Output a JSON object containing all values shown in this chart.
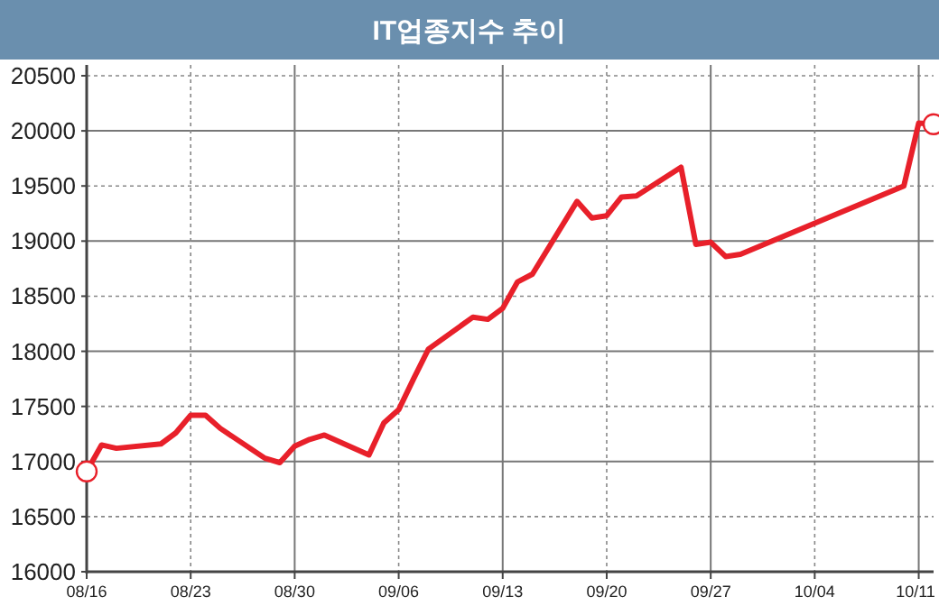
{
  "chart_data": {
    "type": "line",
    "title": "IT업종지수  추이",
    "x": [
      "--08-16",
      "--08-17",
      "--08-18",
      "--08-21",
      "--08-22",
      "--08-23",
      "--08-24",
      "--08-25",
      "--08-28",
      "--08-29",
      "--08-30",
      "--08-31",
      "--09-01",
      "--09-04",
      "--09-05",
      "--09-06",
      "--09-07",
      "--09-08",
      "--09-11",
      "--09-12",
      "--09-13",
      "--09-14",
      "--09-15",
      "--09-18",
      "--09-19",
      "--09-20",
      "--09-21",
      "--09-22",
      "--09-25",
      "--09-26",
      "--09-27",
      "--09-28",
      "--09-29",
      "--10-10",
      "--10-11",
      "--10-12"
    ],
    "series": [
      {
        "color": "#e8202a",
        "values": [
          16910,
          17150,
          17120,
          17160,
          17260,
          17420,
          17420,
          17300,
          17030,
          16990,
          17140,
          17200,
          17240,
          17060,
          17350,
          17470,
          17750,
          18020,
          18310,
          18290,
          18390,
          18630,
          18700,
          19360,
          19210,
          19230,
          19400,
          19410,
          19670,
          18970,
          18990,
          18860,
          18880,
          19500,
          20070,
          20060
        ]
      },
      {
        "type": "scatter",
        "marker": "circle",
        "color": "#e8202a",
        "x": [
          "--08-16",
          "--10-12"
        ],
        "values": [
          16910,
          20060
        ]
      }
    ],
    "xlim": [
      "--08-16",
      "--10-12"
    ],
    "xticks": [
      {
        "value": "--08-16",
        "label": "08/16"
      },
      {
        "value": "--08-23",
        "label": "08/23"
      },
      {
        "value": "--08-30",
        "label": "08/30"
      },
      {
        "value": "--09-06",
        "label": "09/06"
      },
      {
        "value": "--09-13",
        "label": "09/13"
      },
      {
        "value": "--09-20",
        "label": "09/20"
      },
      {
        "value": "--09-27",
        "label": "09/27"
      },
      {
        "value": "--10-04",
        "label": "10/04"
      },
      {
        "value": "--10-11",
        "label": "10/11"
      }
    ],
    "ylim": [
      16000,
      20500
    ],
    "yticks": [
      16000,
      16500,
      17000,
      17500,
      18000,
      18500,
      19000,
      19500,
      20000,
      20500
    ],
    "grid": true
  }
}
